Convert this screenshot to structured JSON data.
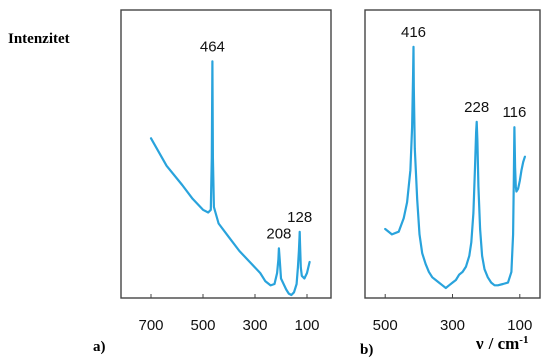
{
  "figure": {
    "ylabel": "Intenzitet",
    "xlabel_symbol": "ν",
    "xlabel_unit": "/ cm",
    "xlabel_unit_exp": "-1"
  },
  "chart_data": [
    {
      "type": "line",
      "panel_label": "a)",
      "color": "#29a3dc",
      "x_ticks": [
        700,
        500,
        300,
        100
      ],
      "xlim": [
        700,
        100
      ],
      "x_reversed": true,
      "y_tick_labels": false,
      "grid": false,
      "series": [
        {
          "x": [
            700,
            640,
            580,
            540,
            500,
            480,
            470,
            466,
            464,
            462,
            458,
            440,
            400,
            360,
            320,
            280,
            260,
            240,
            225,
            215,
            210,
            208,
            205,
            200,
            190,
            180,
            170,
            160,
            150,
            140,
            135,
            131,
            129,
            128,
            127,
            124,
            120,
            110,
            100,
            90
          ],
          "y": [
            0.57,
            0.47,
            0.4,
            0.35,
            0.31,
            0.3,
            0.31,
            0.5,
            0.85,
            0.5,
            0.32,
            0.26,
            0.21,
            0.16,
            0.12,
            0.08,
            0.05,
            0.035,
            0.04,
            0.08,
            0.13,
            0.17,
            0.13,
            0.06,
            0.04,
            0.02,
            0.005,
            0.0,
            0.01,
            0.04,
            0.1,
            0.16,
            0.21,
            0.23,
            0.19,
            0.1,
            0.07,
            0.06,
            0.08,
            0.12
          ]
        }
      ],
      "annotations": [
        {
          "label": "464",
          "x": 464,
          "y": 0.85
        },
        {
          "label": "208",
          "x": 208,
          "y": 0.17
        },
        {
          "label": "128",
          "x": 128,
          "y": 0.23
        }
      ]
    },
    {
      "type": "line",
      "panel_label": "b)",
      "color": "#29a3dc",
      "x_ticks": [
        500,
        300,
        100
      ],
      "xlim": [
        560,
        40
      ],
      "x_reversed": true,
      "y_tick_labels": false,
      "grid": false,
      "series": [
        {
          "x": [
            500,
            480,
            460,
            445,
            435,
            425,
            420,
            417,
            416,
            415,
            412,
            405,
            398,
            390,
            380,
            370,
            360,
            350,
            340,
            330,
            320,
            310,
            300,
            290,
            280,
            270,
            260,
            250,
            244,
            238,
            233,
            230,
            228,
            226,
            223,
            218,
            212,
            205,
            195,
            185,
            175,
            165,
            150,
            135,
            125,
            120,
            118,
            116,
            114,
            112,
            110,
            105,
            100,
            95,
            90,
            85
          ],
          "y": [
            0.22,
            0.2,
            0.21,
            0.26,
            0.32,
            0.44,
            0.6,
            0.8,
            0.9,
            0.75,
            0.52,
            0.33,
            0.2,
            0.13,
            0.09,
            0.06,
            0.04,
            0.03,
            0.02,
            0.01,
            0.0,
            0.01,
            0.02,
            0.03,
            0.05,
            0.06,
            0.08,
            0.12,
            0.17,
            0.28,
            0.45,
            0.58,
            0.62,
            0.55,
            0.38,
            0.22,
            0.12,
            0.07,
            0.04,
            0.02,
            0.01,
            0.01,
            0.015,
            0.02,
            0.06,
            0.2,
            0.4,
            0.6,
            0.45,
            0.38,
            0.36,
            0.37,
            0.4,
            0.44,
            0.47,
            0.49
          ]
        }
      ],
      "annotations": [
        {
          "label": "416",
          "x": 416,
          "y": 0.9
        },
        {
          "label": "228",
          "x": 228,
          "y": 0.62
        },
        {
          "label": "116",
          "x": 116,
          "y": 0.6
        }
      ]
    }
  ]
}
